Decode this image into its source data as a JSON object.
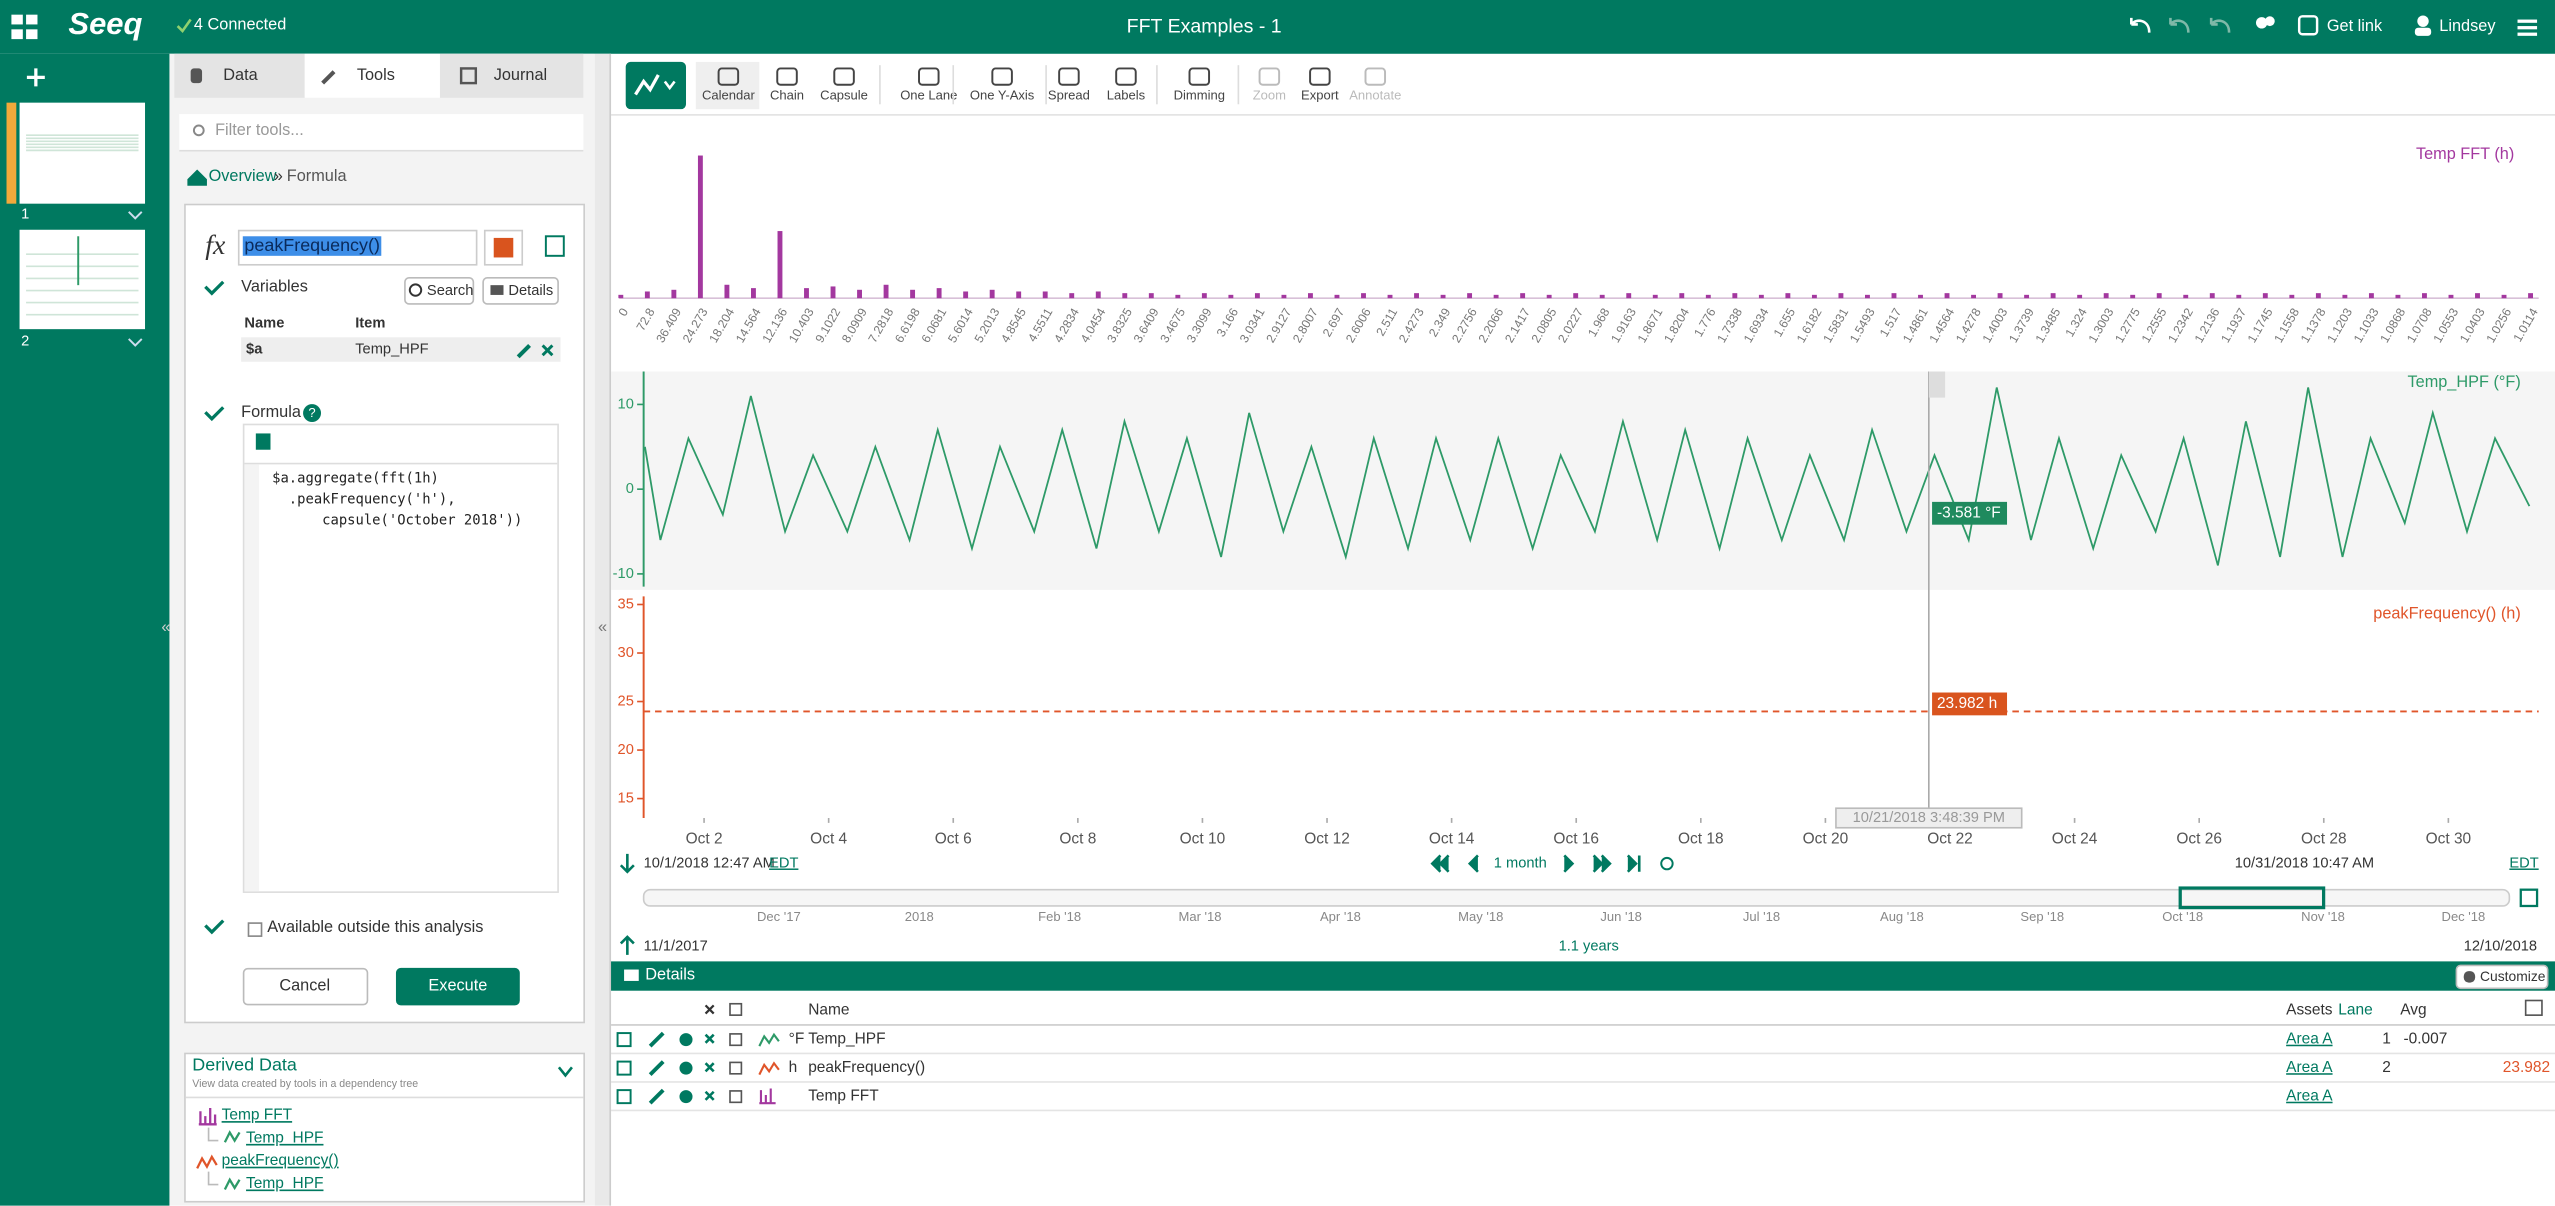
{
  "header": {
    "logo": "Seeq",
    "connection": "4 Connected",
    "title": "FFT Examples - 1",
    "get_link": "Get link",
    "user": "Lindsey"
  },
  "worksheets": [
    "1",
    "2"
  ],
  "tabs": [
    "Data",
    "Tools",
    "Journal"
  ],
  "filter_placeholder": "Filter tools...",
  "breadcrumb": {
    "overview": "Overview",
    "separator": "»",
    "current": "Formula"
  },
  "collapse": "«",
  "formula_panel": {
    "icon": "fx",
    "name": "peakFrequency()",
    "variables_label": "Variables",
    "search": "Search",
    "details": "Details",
    "columns": [
      "Name",
      "Item"
    ],
    "variable_rows": [
      [
        "$a",
        "Temp_HPF"
      ]
    ],
    "formula_label": "Formula",
    "help": "?",
    "code": [
      "$a.aggregate(fft(1h)",
      "  .peakFrequency('h'),",
      "      capsule('October 2018'))"
    ],
    "available": "Available outside this analysis",
    "cancel": "Cancel",
    "execute": "Execute"
  },
  "derived_data": {
    "title": "Derived Data",
    "subtitle": "View data created by tools in a dependency tree",
    "items": [
      "Temp FFT",
      "Temp_HPF",
      "peakFrequency()",
      "Temp_HPF"
    ]
  },
  "toolbar": [
    "Calendar",
    "Chain",
    "Capsule",
    "One Lane",
    "One Y-Axis",
    "Spread",
    "Labels",
    "Dimming",
    "Zoom",
    "Export",
    "Annotate"
  ],
  "chart_data": [
    {
      "type": "bar",
      "title": "Temp FFT (h)",
      "color": "#a3389f",
      "ylim": [
        0,
        100
      ],
      "categories": [
        "0",
        "72.8",
        "36.409",
        "24.273",
        "18.204",
        "14.564",
        "12.136",
        "10.403",
        "9.1022",
        "8.0909",
        "7.2818",
        "6.6198",
        "6.0681",
        "5.6014",
        "5.2013",
        "4.8545",
        "4.5511",
        "4.2834",
        "4.0454",
        "3.8325",
        "3.6409",
        "3.4675",
        "3.3099",
        "3.166",
        "3.0341",
        "2.9127",
        "2.8007",
        "2.697",
        "2.6006",
        "2.511",
        "2.4273",
        "2.349",
        "2.2756",
        "2.2066",
        "2.1417",
        "2.0805",
        "2.0227",
        "1.968",
        "1.9163",
        "1.8671",
        "1.8204",
        "1.776",
        "1.7338",
        "1.6934",
        "1.655",
        "1.6182",
        "1.5831",
        "1.5493",
        "1.517",
        "1.4861",
        "1.4564",
        "1.4278",
        "1.4003",
        "1.3739",
        "1.3485",
        "1.324",
        "1.3003",
        "1.2775",
        "1.2555",
        "1.2342",
        "1.2136",
        "1.1937",
        "1.1745",
        "1.1558",
        "1.1378",
        "1.1203",
        "1.1033",
        "1.0868",
        "1.0708",
        "1.0553",
        "1.0403",
        "1.0256",
        "1.0114"
      ],
      "values": [
        2,
        4,
        5,
        85,
        8,
        6,
        40,
        6,
        7,
        5,
        8,
        5,
        6,
        4,
        5,
        4,
        4,
        3,
        4,
        3,
        3,
        2,
        3,
        2,
        3,
        2,
        3,
        2,
        3,
        2,
        3,
        2,
        3,
        2,
        3,
        2,
        3,
        2,
        3,
        2,
        3,
        2,
        3,
        2,
        3,
        2,
        3,
        2,
        3,
        2,
        3,
        2,
        3,
        2,
        3,
        2,
        3,
        2,
        3,
        2,
        3,
        2,
        3,
        2,
        3,
        2,
        3,
        2,
        3,
        2,
        3,
        2,
        3
      ]
    },
    {
      "type": "line",
      "title": "Temp_HPF (°F)",
      "color": "#2e9a68",
      "xlim": [
        1.03,
        31.45
      ],
      "ylim": [
        -11.5,
        13.5
      ],
      "yticks": [
        -10,
        0,
        10
      ],
      "cursor_label": "-3.581 °F",
      "x": [
        1.05,
        1.3,
        1.75,
        2.3,
        2.75,
        3.3,
        3.75,
        4.3,
        4.75,
        5.3,
        5.75,
        6.3,
        6.75,
        7.3,
        7.75,
        8.3,
        8.75,
        9.3,
        9.75,
        10.3,
        10.75,
        11.3,
        11.75,
        12.3,
        12.75,
        13.3,
        13.75,
        14.3,
        14.75,
        15.3,
        15.75,
        16.3,
        16.75,
        17.3,
        17.75,
        18.3,
        18.75,
        19.3,
        19.75,
        20.3,
        20.75,
        21.3,
        21.75,
        22.3,
        22.75,
        23.3,
        23.75,
        24.3,
        24.75,
        25.3,
        25.75,
        26.3,
        26.75,
        27.3,
        27.75,
        28.3,
        28.75,
        29.3,
        29.75,
        30.3,
        30.75,
        31.3
      ],
      "values": [
        5,
        -6,
        6,
        -3,
        11,
        -5,
        4,
        -5,
        5,
        -6,
        7,
        -7,
        5,
        -5,
        7,
        -7,
        8,
        -5,
        6,
        -8,
        9,
        -5,
        5,
        -8,
        6,
        -7,
        6,
        -6,
        6,
        -7,
        4,
        -5,
        8,
        -6,
        7,
        -7,
        6,
        -6,
        4,
        -6,
        7,
        -5,
        4,
        -6,
        12,
        -6,
        6,
        -7,
        4,
        -5,
        6,
        -9,
        8,
        -8,
        12,
        -8,
        6,
        -4,
        9,
        -5,
        6,
        -2
      ]
    },
    {
      "type": "line",
      "title": "peakFrequency() (h)",
      "color": "#e0552a",
      "dashed": true,
      "xlim": [
        1.03,
        31.45
      ],
      "ylim": [
        13,
        35.5
      ],
      "yticks": [
        15,
        20,
        25,
        30,
        35
      ],
      "cursor_label": "23.982 h",
      "x": [
        1.03,
        31.45
      ],
      "values": [
        23.982,
        23.982
      ],
      "xticks": [
        {
          "value": 2,
          "label": "Oct 2"
        },
        {
          "value": 4,
          "label": "Oct 4"
        },
        {
          "value": 6,
          "label": "Oct 6"
        },
        {
          "value": 8,
          "label": "Oct 8"
        },
        {
          "value": 10,
          "label": "Oct 10"
        },
        {
          "value": 12,
          "label": "Oct 12"
        },
        {
          "value": 14,
          "label": "Oct 14"
        },
        {
          "value": 16,
          "label": "Oct 16"
        },
        {
          "value": 18,
          "label": "Oct 18"
        },
        {
          "value": 20,
          "label": "Oct 20"
        },
        {
          "value": 22,
          "label": "Oct 22"
        },
        {
          "value": 24,
          "label": "Oct 24"
        },
        {
          "value": 26,
          "label": "Oct 26"
        },
        {
          "value": 28,
          "label": "Oct 28"
        },
        {
          "value": 30,
          "label": "Oct 30"
        }
      ]
    }
  ],
  "cursor": {
    "x": 21.66,
    "label": "10/21/2018 3:48:39 PM"
  },
  "timebar": {
    "start": "10/1/2018 12:47 AM",
    "start_tz": "EDT",
    "duration": "1 month",
    "end": "10/31/2018 10:47 AM",
    "end_tz": "EDT"
  },
  "overview": {
    "ticks": [
      "Dec '17",
      "2018",
      "Feb '18",
      "Mar '18",
      "Apr '18",
      "May '18",
      "Jun '18",
      "Jul '18",
      "Aug '18",
      "Sep '18",
      "Oct '18",
      "Nov '18",
      "Dec '18"
    ],
    "start": "11/1/2017",
    "span": "1.1 years",
    "end": "12/10/2018"
  },
  "details": {
    "title": "Details",
    "customize": "Customize",
    "columns": {
      "name": "Name",
      "assets": "Assets",
      "lane": "Lane",
      "avg": "Avg"
    },
    "rows": [
      {
        "unit": "°F",
        "name": "Temp_HPF",
        "asset": "Area A",
        "lane": 1,
        "avg": -0.007
      },
      {
        "unit": "h",
        "name": "peakFrequency()",
        "asset": "Area A",
        "lane": 2,
        "avg": 23.982
      },
      {
        "name": "Temp FFT",
        "asset": "Area A"
      }
    ]
  }
}
